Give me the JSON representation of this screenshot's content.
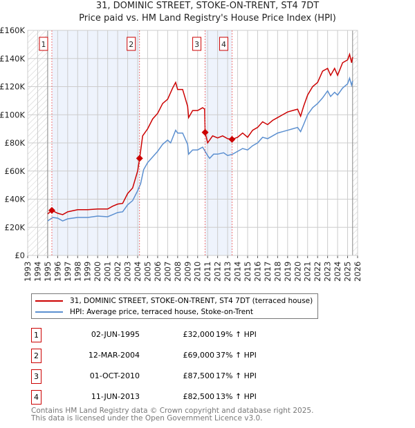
{
  "title": "31, DOMINIC STREET, STOKE-ON-TRENT, ST4 7DT",
  "subtitle": "Price paid vs. HM Land Registry's House Price Index (HPI)",
  "chart_data": {
    "type": "line",
    "ylim": [
      0,
      160000
    ],
    "xlim": [
      1993,
      2026
    ],
    "yticks": [
      "£0",
      "£20K",
      "£40K",
      "£60K",
      "£80K",
      "£100K",
      "£120K",
      "£140K",
      "£160K"
    ],
    "xticks": [
      "1993",
      "1994",
      "1995",
      "1996",
      "1997",
      "1998",
      "1999",
      "2000",
      "2001",
      "2002",
      "2003",
      "2004",
      "2005",
      "2006",
      "2007",
      "2008",
      "2009",
      "2010",
      "2011",
      "2012",
      "2013",
      "2014",
      "2015",
      "2016",
      "2017",
      "2018",
      "2019",
      "2020",
      "2021",
      "2022",
      "2023",
      "2024",
      "2025",
      "2026"
    ],
    "colors": {
      "property": "#cc0000",
      "hpi": "#5b8fd0"
    },
    "series": [
      {
        "name": "31, DOMINIC STREET, STOKE-ON-TRENT, ST4 7DT (terraced house)",
        "points": [
          [
            1995,
            29.5
          ],
          [
            1995.42,
            32
          ],
          [
            1996,
            30
          ],
          [
            1996.5,
            29
          ],
          [
            1997,
            31
          ],
          [
            1998,
            32.5
          ],
          [
            1999,
            32.5
          ],
          [
            2000,
            33
          ],
          [
            2001,
            33
          ],
          [
            2001.5,
            35
          ],
          [
            2002,
            36.5
          ],
          [
            2002.5,
            37
          ],
          [
            2003,
            44
          ],
          [
            2003.5,
            48
          ],
          [
            2004,
            60
          ],
          [
            2004.2,
            69
          ],
          [
            2004.5,
            85
          ],
          [
            2005,
            90
          ],
          [
            2005.5,
            97
          ],
          [
            2006,
            101
          ],
          [
            2006.5,
            108
          ],
          [
            2007,
            111
          ],
          [
            2007.5,
            119
          ],
          [
            2007.8,
            123
          ],
          [
            2008,
            118
          ],
          [
            2008.5,
            118
          ],
          [
            2009,
            106
          ],
          [
            2009.1,
            98
          ],
          [
            2009.5,
            103
          ],
          [
            2010,
            103
          ],
          [
            2010.5,
            105
          ],
          [
            2010.7,
            104
          ],
          [
            2010.75,
            87.5
          ],
          [
            2011,
            80
          ],
          [
            2011.5,
            85
          ],
          [
            2012,
            83.5
          ],
          [
            2012.5,
            85
          ],
          [
            2013,
            83
          ],
          [
            2013.45,
            82.5
          ],
          [
            2014,
            84
          ],
          [
            2014.5,
            87
          ],
          [
            2015,
            84
          ],
          [
            2015.5,
            89
          ],
          [
            2016,
            91
          ],
          [
            2016.5,
            95
          ],
          [
            2017,
            93
          ],
          [
            2017.5,
            96
          ],
          [
            2018,
            98
          ],
          [
            2018.5,
            100
          ],
          [
            2019,
            102
          ],
          [
            2019.5,
            103
          ],
          [
            2020,
            104
          ],
          [
            2020.3,
            99
          ],
          [
            2020.6,
            106
          ],
          [
            2021,
            114
          ],
          [
            2021.5,
            120
          ],
          [
            2022,
            123
          ],
          [
            2022.5,
            131
          ],
          [
            2023,
            133
          ],
          [
            2023.3,
            128
          ],
          [
            2023.7,
            133
          ],
          [
            2024,
            128
          ],
          [
            2024.5,
            137
          ],
          [
            2025,
            139
          ],
          [
            2025.2,
            143
          ],
          [
            2025.4,
            137
          ],
          [
            2025.5,
            141
          ]
        ]
      },
      {
        "name": "HPI: Average price, terraced house, Stoke-on-Trent",
        "points": [
          [
            1995,
            24.5
          ],
          [
            1995.5,
            27
          ],
          [
            1996,
            26.5
          ],
          [
            1996.5,
            24.5
          ],
          [
            1997,
            26
          ],
          [
            1998,
            27
          ],
          [
            1999,
            27
          ],
          [
            2000,
            28
          ],
          [
            2001,
            27.5
          ],
          [
            2001.5,
            29
          ],
          [
            2002,
            30.5
          ],
          [
            2002.5,
            31
          ],
          [
            2003,
            36
          ],
          [
            2003.5,
            39
          ],
          [
            2004,
            46
          ],
          [
            2004.3,
            51
          ],
          [
            2004.6,
            61
          ],
          [
            2005,
            66
          ],
          [
            2005.5,
            70
          ],
          [
            2006,
            74
          ],
          [
            2006.5,
            79
          ],
          [
            2007,
            82
          ],
          [
            2007.3,
            80
          ],
          [
            2007.8,
            89
          ],
          [
            2008,
            87
          ],
          [
            2008.5,
            87
          ],
          [
            2009,
            79
          ],
          [
            2009.1,
            72
          ],
          [
            2009.5,
            75
          ],
          [
            2010,
            75
          ],
          [
            2010.5,
            77
          ],
          [
            2011,
            71
          ],
          [
            2011.2,
            69
          ],
          [
            2011.6,
            72
          ],
          [
            2012,
            72
          ],
          [
            2012.6,
            73
          ],
          [
            2013,
            71
          ],
          [
            2013.5,
            72
          ],
          [
            2014,
            74
          ],
          [
            2014.5,
            76
          ],
          [
            2015,
            75
          ],
          [
            2015.5,
            78
          ],
          [
            2016,
            80
          ],
          [
            2016.5,
            84
          ],
          [
            2017,
            83
          ],
          [
            2017.5,
            85
          ],
          [
            2018,
            87
          ],
          [
            2018.5,
            88
          ],
          [
            2019,
            89
          ],
          [
            2019.5,
            90
          ],
          [
            2020,
            91
          ],
          [
            2020.3,
            88
          ],
          [
            2020.6,
            93
          ],
          [
            2021,
            100
          ],
          [
            2021.5,
            105
          ],
          [
            2022,
            108
          ],
          [
            2022.5,
            112
          ],
          [
            2023,
            117
          ],
          [
            2023.3,
            113
          ],
          [
            2023.7,
            116
          ],
          [
            2024,
            114
          ],
          [
            2024.5,
            119
          ],
          [
            2025,
            122
          ],
          [
            2025.2,
            126
          ],
          [
            2025.4,
            121
          ],
          [
            2025.5,
            124
          ]
        ]
      }
    ],
    "sales": [
      {
        "label": "1",
        "x": 1995.42,
        "date": "02-JUN-1995",
        "price": "£32,000",
        "value": 32,
        "hpi": "19% ↑ HPI"
      },
      {
        "label": "2",
        "x": 2004.19,
        "date": "12-MAR-2004",
        "price": "£69,000",
        "value": 69,
        "hpi": "37% ↑ HPI"
      },
      {
        "label": "3",
        "x": 2010.75,
        "date": "01-OCT-2010",
        "price": "£87,500",
        "value": 87.5,
        "hpi": "17% ↑ HPI"
      },
      {
        "label": "4",
        "x": 2013.44,
        "date": "11-JUN-2013",
        "price": "£82,500",
        "value": 82.5,
        "hpi": "13% ↑ HPI"
      }
    ]
  },
  "footer": {
    "line1": "Contains HM Land Registry data © Crown copyright and database right 2025.",
    "line2": "This data is licensed under the Open Government Licence v3.0."
  }
}
